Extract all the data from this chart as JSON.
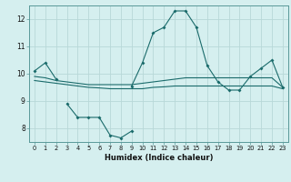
{
  "x": [
    0,
    1,
    2,
    3,
    4,
    5,
    6,
    7,
    8,
    9,
    10,
    11,
    12,
    13,
    14,
    15,
    16,
    17,
    18,
    19,
    20,
    21,
    22,
    23
  ],
  "line1": [
    10.1,
    10.4,
    9.8,
    null,
    null,
    null,
    null,
    null,
    null,
    9.55,
    10.4,
    11.5,
    11.7,
    12.3,
    12.3,
    11.7,
    10.3,
    9.7,
    9.4,
    9.4,
    9.9,
    10.2,
    10.5,
    9.5
  ],
  "line2": [
    9.9,
    9.85,
    9.75,
    9.7,
    9.65,
    9.6,
    9.6,
    9.6,
    9.6,
    9.6,
    9.65,
    9.7,
    9.75,
    9.8,
    9.85,
    9.85,
    9.85,
    9.85,
    9.85,
    9.85,
    9.85,
    9.85,
    9.85,
    9.5
  ],
  "line3": [
    null,
    null,
    null,
    8.9,
    8.4,
    8.4,
    8.4,
    7.75,
    7.65,
    7.9,
    null,
    null,
    null,
    null,
    null,
    null,
    null,
    null,
    null,
    null,
    null,
    null,
    null,
    null
  ],
  "line4": [
    9.75,
    9.7,
    9.65,
    9.6,
    9.55,
    9.5,
    9.48,
    9.45,
    9.45,
    9.45,
    9.45,
    9.5,
    9.52,
    9.55,
    9.55,
    9.55,
    9.55,
    9.55,
    9.55,
    9.55,
    9.55,
    9.55,
    9.55,
    9.45
  ],
  "ylim": [
    7.5,
    12.5
  ],
  "xlim": [
    -0.5,
    23.5
  ],
  "yticks": [
    8,
    9,
    10,
    11,
    12
  ],
  "xticks": [
    0,
    1,
    2,
    3,
    4,
    5,
    6,
    7,
    8,
    9,
    10,
    11,
    12,
    13,
    14,
    15,
    16,
    17,
    18,
    19,
    20,
    21,
    22,
    23
  ],
  "xlabel": "Humidex (Indice chaleur)",
  "bg_color": "#d5efef",
  "grid_color": "#b8d8d8",
  "line_color": "#1a6b6b"
}
